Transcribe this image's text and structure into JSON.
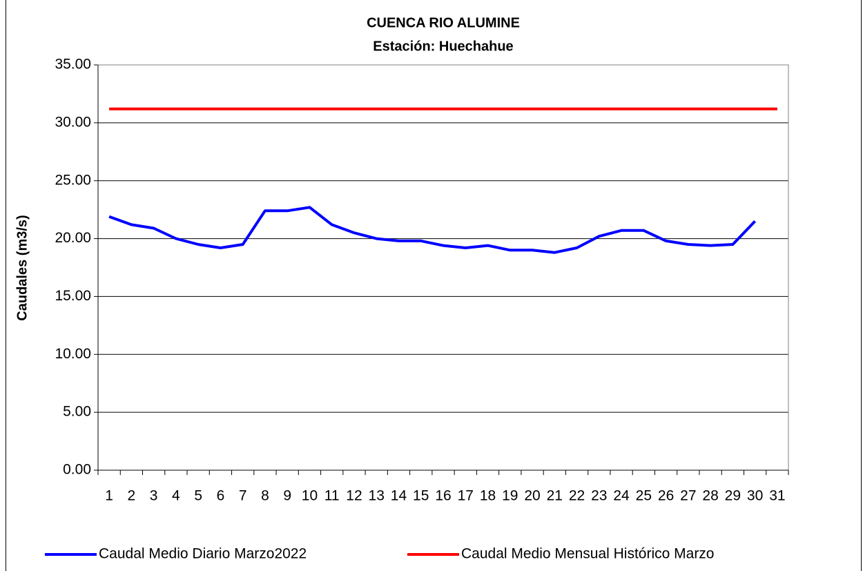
{
  "chart_data": {
    "type": "line",
    "title": "CUENCA RIO ALUMINE",
    "subtitle": "Estación: Huechahue",
    "y_label": "Caudales (m3/s)",
    "categories": [
      "1",
      "2",
      "3",
      "4",
      "5",
      "6",
      "7",
      "8",
      "9",
      "10",
      "11",
      "12",
      "13",
      "14",
      "15",
      "16",
      "17",
      "18",
      "19",
      "20",
      "21",
      "22",
      "23",
      "24",
      "25",
      "26",
      "27",
      "28",
      "29",
      "30",
      "31"
    ],
    "series": [
      {
        "name": "Caudal Medio Diario Marzo2022",
        "color": "#0000ff",
        "values": [
          21.9,
          21.2,
          20.9,
          20.0,
          19.5,
          19.2,
          19.5,
          22.4,
          22.4,
          22.7,
          21.2,
          20.5,
          20.0,
          19.8,
          19.8,
          19.4,
          19.2,
          19.4,
          19.0,
          19.0,
          18.8,
          19.2,
          20.2,
          20.7,
          20.7,
          19.8,
          19.5,
          19.4,
          19.5,
          21.5,
          null
        ]
      },
      {
        "name": "Caudal Medio Mensual Histórico Marzo",
        "color": "#ff0000",
        "values": [
          31.2,
          31.2,
          31.2,
          31.2,
          31.2,
          31.2,
          31.2,
          31.2,
          31.2,
          31.2,
          31.2,
          31.2,
          31.2,
          31.2,
          31.2,
          31.2,
          31.2,
          31.2,
          31.2,
          31.2,
          31.2,
          31.2,
          31.2,
          31.2,
          31.2,
          31.2,
          31.2,
          31.2,
          31.2,
          31.2,
          31.2
        ]
      }
    ],
    "ylim": [
      0,
      35
    ],
    "yticks": [
      {
        "value": 0,
        "label": "0.00"
      },
      {
        "value": 5,
        "label": "5.00"
      },
      {
        "value": 10,
        "label": "10.00"
      },
      {
        "value": 15,
        "label": "15.00"
      },
      {
        "value": 20,
        "label": "20.00"
      },
      {
        "value": 25,
        "label": "25.00"
      },
      {
        "value": 30,
        "label": "30.00"
      },
      {
        "value": 35,
        "label": "35.00"
      }
    ],
    "grid": true,
    "legend": "bottom"
  }
}
